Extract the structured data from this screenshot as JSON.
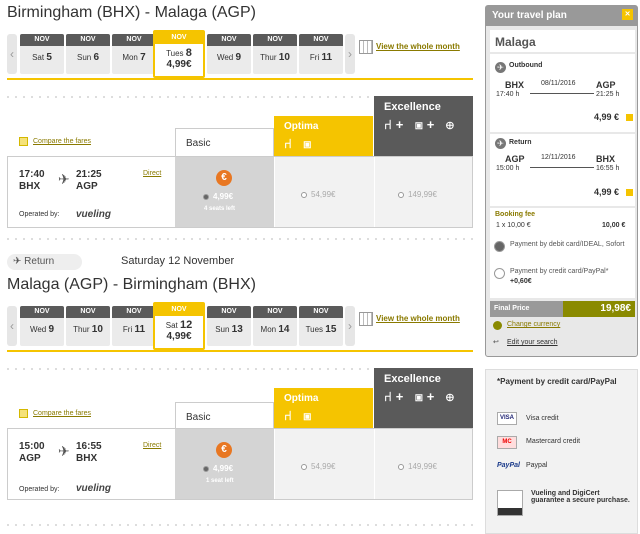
{
  "outbound": {
    "title": "Birmingham (BHX) - Malaga (AGP)",
    "dates": [
      {
        "mon": "NOV",
        "dow": "Sat",
        "day": "5"
      },
      {
        "mon": "NOV",
        "dow": "Sun",
        "day": "6"
      },
      {
        "mon": "NOV",
        "dow": "Mon",
        "day": "7"
      },
      {
        "mon": "NOV",
        "dow": "Tues",
        "day": "8",
        "price": "4,99€",
        "selected": true
      },
      {
        "mon": "NOV",
        "dow": "Wed",
        "day": "9"
      },
      {
        "mon": "NOV",
        "dow": "Thur",
        "day": "10"
      },
      {
        "mon": "NOV",
        "dow": "Fri",
        "day": "11"
      }
    ],
    "whole_month": "View the whole month",
    "compare": "Compare the fares",
    "fare_basic": "Basic",
    "fare_optima": "Optima",
    "fare_excellence": "Excellence",
    "flight": {
      "dep_time": "17:40",
      "dep_code": "BHX",
      "arr_time": "21:25",
      "arr_code": "AGP",
      "direct": "Direct",
      "operated": "Operated by:",
      "carrier": "vueling"
    },
    "prices": {
      "basic": "4,99€",
      "seats": "4 seats left",
      "optima": "54,99€",
      "excellence": "149,99€"
    }
  },
  "return": {
    "button": "Return",
    "date_label": "Saturday 12 November",
    "title": "Malaga (AGP) - Birmingham (BHX)",
    "dates": [
      {
        "mon": "NOV",
        "dow": "Wed",
        "day": "9"
      },
      {
        "mon": "NOV",
        "dow": "Thur",
        "day": "10"
      },
      {
        "mon": "NOV",
        "dow": "Fri",
        "day": "11"
      },
      {
        "mon": "NOV",
        "dow": "Sat",
        "day": "12",
        "price": "4,99€",
        "selected": true
      },
      {
        "mon": "NOV",
        "dow": "Sun",
        "day": "13"
      },
      {
        "mon": "NOV",
        "dow": "Mon",
        "day": "14"
      },
      {
        "mon": "NOV",
        "dow": "Tues",
        "day": "15"
      }
    ],
    "whole_month": "View the whole month",
    "compare": "Compare the fares",
    "fare_basic": "Basic",
    "fare_optima": "Optima",
    "fare_excellence": "Excellence",
    "flight": {
      "dep_time": "15:00",
      "dep_code": "AGP",
      "arr_time": "16:55",
      "arr_code": "BHX",
      "direct": "Direct",
      "operated": "Operated by:",
      "carrier": "vueling"
    },
    "prices": {
      "basic": "4,99€",
      "seats": "1 seat left",
      "optima": "54,99€",
      "excellence": "149,99€"
    }
  },
  "plan": {
    "title": "Your travel plan",
    "destination": "Malaga",
    "outbound": {
      "label": "Outbound",
      "from": "BHX",
      "to": "AGP",
      "date": "08/11/2016",
      "dep": "17:40 h",
      "arr": "21:25 h",
      "price": "4,99 €"
    },
    "return": {
      "label": "Return",
      "from": "AGP",
      "to": "BHX",
      "date": "12/11/2016",
      "dep": "15:00 h",
      "arr": "16:55 h",
      "price": "4,99 €"
    },
    "booking_fee": {
      "label": "Booking fee",
      "qty": "1 x 10,00 €",
      "total": "10,00 €"
    },
    "pay_debit": "Payment by debit card/IDEAL, Sofort",
    "pay_credit": "Payment by credit card/PayPal*",
    "pay_credit_extra": "+0,60€",
    "final_label": "Final Price",
    "final_value": "19,98€",
    "change_currency": "Change currency",
    "edit_search": "Edit your search"
  },
  "payment_info": {
    "title": "*Payment by credit card/PayPal",
    "visa": "Visa credit",
    "mastercard": "Mastercard credit",
    "paypal": "Paypal",
    "paypal_logo": "PayPal",
    "digicert": "Vueling and DigiCert guarantee a secure purchase.",
    "visa_logo": "VISA",
    "mc_logo": "MC"
  },
  "colors": {
    "accent": "#f5c400",
    "dark": "#5a5a5a",
    "link": "#8a7a00",
    "orange": "#e87722"
  },
  "icons": [
    "plane-icon",
    "calendar-icon",
    "seat-icon",
    "luggage-icon",
    "close-icon",
    "radio-icon"
  ]
}
